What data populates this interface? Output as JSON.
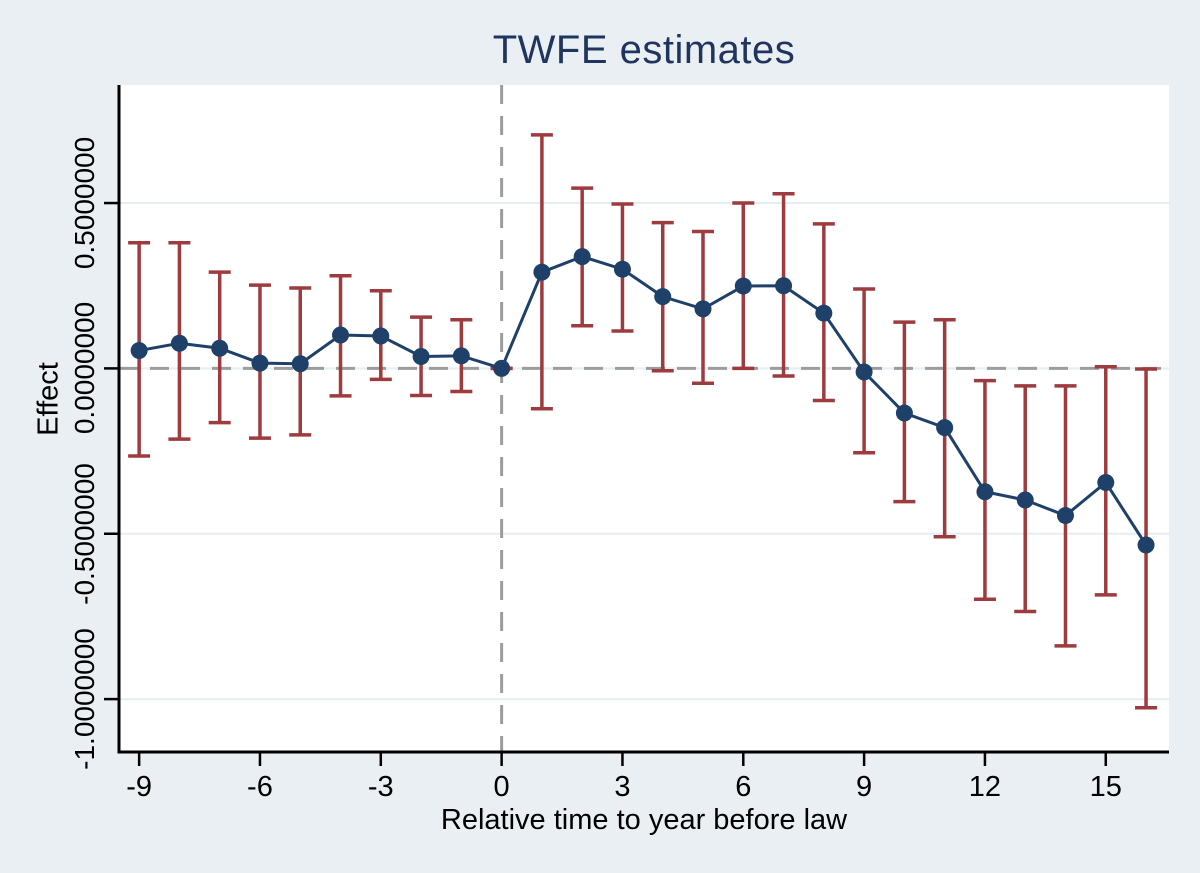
{
  "figure": {
    "title": "TWFE estimates"
  },
  "chart_data": {
    "type": "line",
    "subtype": "event-study point estimates with confidence-interval error bars",
    "title": "TWFE estimates",
    "xlabel": "Relative time to year before law",
    "ylabel": "Effect",
    "x": [
      -9,
      -8,
      -7,
      -6,
      -5,
      -4,
      -3,
      -2,
      -1,
      0,
      1,
      2,
      3,
      4,
      5,
      6,
      7,
      8,
      9,
      10,
      11,
      12,
      13,
      14,
      15,
      16
    ],
    "series": [
      {
        "name": "TWFE estimate",
        "values": [
          0.054,
          0.076,
          0.061,
          0.016,
          0.014,
          0.101,
          0.098,
          0.036,
          0.038,
          0.0,
          0.291,
          0.338,
          0.3,
          0.217,
          0.18,
          0.249,
          0.25,
          0.167,
          -0.011,
          -0.135,
          -0.179,
          -0.373,
          -0.398,
          -0.445,
          -0.345,
          -0.534
        ]
      }
    ],
    "ci_low": [
      -0.265,
      -0.214,
      -0.164,
      -0.211,
      -0.201,
      -0.083,
      -0.033,
      -0.082,
      -0.07,
      0.0,
      -0.122,
      0.129,
      0.113,
      -0.007,
      -0.045,
      0.0,
      -0.023,
      -0.097,
      -0.255,
      -0.403,
      -0.509,
      -0.698,
      -0.735,
      -0.839,
      -0.685,
      -1.026
    ],
    "ci_high": [
      0.38,
      0.38,
      0.291,
      0.252,
      0.243,
      0.28,
      0.235,
      0.155,
      0.147,
      0.0,
      0.706,
      0.545,
      0.497,
      0.441,
      0.414,
      0.5,
      0.528,
      0.437,
      0.24,
      0.14,
      0.147,
      -0.037,
      -0.053,
      -0.053,
      0.005,
      -0.002
    ],
    "x_ticks": [
      -9,
      -6,
      -3,
      0,
      3,
      6,
      9,
      12,
      15
    ],
    "x_tick_labels": [
      "-9",
      "-6",
      "-3",
      "0",
      "3",
      "6",
      "9",
      "12",
      "15"
    ],
    "y_ticks": [
      0.5,
      0.0,
      -0.5,
      -1.0
    ],
    "y_tick_labels": [
      "0.5000000",
      "0.0000000",
      "-0.5000000",
      "-1.0000000"
    ],
    "xlim": [
      -9.5,
      16.57
    ],
    "ylim": [
      -1.16,
      0.857
    ],
    "ref_line_x": 0,
    "ref_line_y": 0,
    "grid": true,
    "legend_position": "none",
    "colors": {
      "marker": "#1f4068",
      "line": "#1f4068",
      "ci": "#9e3b3e",
      "grid": "#e4eef3",
      "ref_dash": "#9c9c9c",
      "title": "#1f355e",
      "background": "#e9eff3",
      "plot_background": "#ffffff",
      "axis": "#000000"
    }
  }
}
